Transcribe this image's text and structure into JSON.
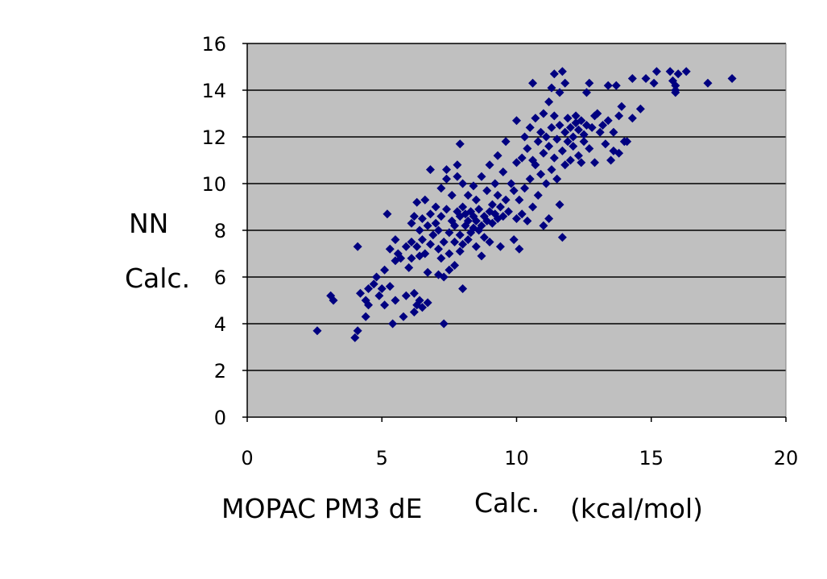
{
  "chart_data": {
    "type": "scatter",
    "title": "",
    "xlabel_parts": [
      "MOPAC PM3 dE",
      "Calc.",
      "(kcal/mol)"
    ],
    "ylabel_parts": [
      "NN",
      "Calc."
    ],
    "xlim": [
      0,
      20
    ],
    "ylim": [
      0,
      16
    ],
    "xticks": [
      "0",
      "5",
      "10",
      "15",
      "20"
    ],
    "yticks": [
      "0",
      "2",
      "4",
      "6",
      "8",
      "10",
      "12",
      "14",
      "16"
    ],
    "grid": "horizontal",
    "legend": "none",
    "colors": {
      "plot_background": "#c0c0c0",
      "marker": "#000080",
      "grid": "#000000"
    },
    "marker": "diamond",
    "points": [
      [
        2.6,
        3.7
      ],
      [
        3.1,
        5.2
      ],
      [
        3.2,
        5.0
      ],
      [
        4.0,
        3.4
      ],
      [
        4.1,
        3.7
      ],
      [
        4.1,
        7.3
      ],
      [
        4.2,
        5.3
      ],
      [
        4.4,
        4.3
      ],
      [
        4.4,
        5.0
      ],
      [
        4.5,
        4.8
      ],
      [
        4.5,
        5.5
      ],
      [
        4.7,
        5.7
      ],
      [
        4.8,
        6.0
      ],
      [
        4.9,
        5.2
      ],
      [
        5.0,
        5.5
      ],
      [
        5.1,
        4.8
      ],
      [
        5.1,
        6.3
      ],
      [
        5.2,
        8.7
      ],
      [
        5.3,
        5.6
      ],
      [
        5.3,
        7.2
      ],
      [
        5.4,
        4.0
      ],
      [
        5.5,
        5.0
      ],
      [
        5.5,
        6.7
      ],
      [
        5.5,
        7.6
      ],
      [
        5.6,
        7.0
      ],
      [
        5.7,
        6.8
      ],
      [
        5.8,
        4.3
      ],
      [
        5.9,
        5.2
      ],
      [
        5.9,
        7.3
      ],
      [
        6.0,
        6.4
      ],
      [
        6.1,
        6.8
      ],
      [
        6.1,
        7.5
      ],
      [
        6.1,
        8.3
      ],
      [
        6.2,
        4.5
      ],
      [
        6.2,
        5.3
      ],
      [
        6.2,
        8.6
      ],
      [
        6.3,
        4.8
      ],
      [
        6.3,
        7.3
      ],
      [
        6.3,
        9.2
      ],
      [
        6.4,
        5.0
      ],
      [
        6.4,
        6.9
      ],
      [
        6.4,
        8.0
      ],
      [
        6.5,
        4.7
      ],
      [
        6.5,
        7.6
      ],
      [
        6.5,
        8.5
      ],
      [
        6.6,
        7.0
      ],
      [
        6.6,
        9.3
      ],
      [
        6.7,
        4.9
      ],
      [
        6.7,
        6.2
      ],
      [
        6.7,
        8.2
      ],
      [
        6.8,
        7.4
      ],
      [
        6.8,
        8.7
      ],
      [
        6.8,
        10.6
      ],
      [
        6.9,
        7.8
      ],
      [
        7.0,
        8.3
      ],
      [
        7.0,
        9.0
      ],
      [
        7.1,
        6.1
      ],
      [
        7.1,
        7.2
      ],
      [
        7.1,
        8.0
      ],
      [
        7.2,
        6.8
      ],
      [
        7.2,
        8.6
      ],
      [
        7.2,
        9.8
      ],
      [
        7.3,
        4.0
      ],
      [
        7.3,
        6.0
      ],
      [
        7.3,
        7.5
      ],
      [
        7.4,
        8.9
      ],
      [
        7.4,
        10.2
      ],
      [
        7.4,
        10.6
      ],
      [
        7.5,
        6.3
      ],
      [
        7.5,
        7.0
      ],
      [
        7.5,
        7.9
      ],
      [
        7.6,
        8.4
      ],
      [
        7.6,
        9.5
      ],
      [
        7.7,
        6.5
      ],
      [
        7.7,
        7.5
      ],
      [
        7.7,
        8.2
      ],
      [
        7.8,
        8.8
      ],
      [
        7.8,
        10.3
      ],
      [
        7.8,
        10.8
      ],
      [
        7.9,
        7.1
      ],
      [
        7.9,
        7.8
      ],
      [
        7.9,
        8.6
      ],
      [
        7.9,
        11.7
      ],
      [
        8.0,
        5.5
      ],
      [
        8.0,
        7.4
      ],
      [
        8.0,
        9.0
      ],
      [
        8.0,
        10.0
      ],
      [
        8.1,
        8.2
      ],
      [
        8.1,
        8.7
      ],
      [
        8.2,
        7.6
      ],
      [
        8.2,
        8.4
      ],
      [
        8.2,
        9.5
      ],
      [
        8.3,
        7.9
      ],
      [
        8.3,
        8.8
      ],
      [
        8.4,
        8.1
      ],
      [
        8.4,
        8.6
      ],
      [
        8.4,
        9.9
      ],
      [
        8.5,
        7.3
      ],
      [
        8.5,
        8.4
      ],
      [
        8.5,
        9.3
      ],
      [
        8.6,
        8.0
      ],
      [
        8.6,
        8.9
      ],
      [
        8.7,
        6.9
      ],
      [
        8.7,
        8.2
      ],
      [
        8.7,
        10.3
      ],
      [
        8.8,
        7.7
      ],
      [
        8.8,
        8.6
      ],
      [
        8.9,
        8.4
      ],
      [
        8.9,
        9.7
      ],
      [
        9.0,
        7.5
      ],
      [
        9.0,
        8.8
      ],
      [
        9.0,
        10.8
      ],
      [
        9.1,
        8.3
      ],
      [
        9.1,
        9.1
      ],
      [
        9.2,
        8.7
      ],
      [
        9.2,
        10.0
      ],
      [
        9.3,
        8.5
      ],
      [
        9.3,
        9.5
      ],
      [
        9.3,
        11.2
      ],
      [
        9.4,
        7.3
      ],
      [
        9.4,
        9.0
      ],
      [
        9.5,
        8.6
      ],
      [
        9.5,
        10.5
      ],
      [
        9.6,
        9.3
      ],
      [
        9.6,
        11.8
      ],
      [
        9.7,
        8.8
      ],
      [
        9.8,
        10.0
      ],
      [
        9.9,
        7.6
      ],
      [
        9.9,
        9.7
      ],
      [
        10.0,
        8.5
      ],
      [
        10.0,
        10.9
      ],
      [
        10.0,
        12.7
      ],
      [
        10.1,
        7.2
      ],
      [
        10.1,
        9.3
      ],
      [
        10.2,
        8.7
      ],
      [
        10.2,
        11.1
      ],
      [
        10.3,
        9.8
      ],
      [
        10.3,
        12.0
      ],
      [
        10.4,
        8.4
      ],
      [
        10.4,
        11.5
      ],
      [
        10.5,
        10.2
      ],
      [
        10.5,
        12.4
      ],
      [
        10.6,
        9.0
      ],
      [
        10.6,
        11.0
      ],
      [
        10.6,
        14.3
      ],
      [
        10.7,
        10.8
      ],
      [
        10.7,
        12.8
      ],
      [
        10.8,
        9.5
      ],
      [
        10.8,
        11.8
      ],
      [
        10.9,
        10.4
      ],
      [
        10.9,
        12.2
      ],
      [
        11.0,
        8.2
      ],
      [
        11.0,
        11.3
      ],
      [
        11.0,
        13.0
      ],
      [
        11.1,
        10.0
      ],
      [
        11.1,
        12.0
      ],
      [
        11.2,
        8.5
      ],
      [
        11.2,
        11.6
      ],
      [
        11.2,
        13.5
      ],
      [
        11.3,
        10.6
      ],
      [
        11.3,
        12.4
      ],
      [
        11.3,
        14.1
      ],
      [
        11.4,
        11.1
      ],
      [
        11.4,
        12.9
      ],
      [
        11.4,
        14.7
      ],
      [
        11.5,
        10.2
      ],
      [
        11.5,
        11.9
      ],
      [
        11.6,
        9.1
      ],
      [
        11.6,
        12.5
      ],
      [
        11.6,
        13.9
      ],
      [
        11.7,
        7.7
      ],
      [
        11.7,
        11.4
      ],
      [
        11.7,
        14.8
      ],
      [
        11.8,
        10.8
      ],
      [
        11.8,
        12.2
      ],
      [
        11.8,
        14.3
      ],
      [
        11.9,
        11.8
      ],
      [
        11.9,
        12.8
      ],
      [
        12.0,
        11.0
      ],
      [
        12.0,
        12.4
      ],
      [
        12.1,
        11.6
      ],
      [
        12.1,
        12.0
      ],
      [
        12.2,
        12.6
      ],
      [
        12.2,
        12.9
      ],
      [
        12.3,
        11.2
      ],
      [
        12.3,
        12.3
      ],
      [
        12.4,
        10.9
      ],
      [
        12.4,
        12.7
      ],
      [
        12.5,
        11.8
      ],
      [
        12.5,
        12.1
      ],
      [
        12.6,
        12.5
      ],
      [
        12.6,
        13.9
      ],
      [
        12.7,
        11.5
      ],
      [
        12.7,
        14.3
      ],
      [
        12.8,
        12.4
      ],
      [
        12.9,
        10.9
      ],
      [
        12.9,
        12.9
      ],
      [
        13.0,
        13.0
      ],
      [
        13.1,
        12.2
      ],
      [
        13.2,
        12.5
      ],
      [
        13.3,
        11.7
      ],
      [
        13.4,
        12.7
      ],
      [
        13.4,
        14.2
      ],
      [
        13.5,
        11.0
      ],
      [
        13.6,
        11.4
      ],
      [
        13.6,
        12.2
      ],
      [
        13.7,
        14.2
      ],
      [
        13.8,
        11.3
      ],
      [
        13.8,
        12.9
      ],
      [
        13.9,
        13.3
      ],
      [
        14.0,
        11.8
      ],
      [
        14.1,
        11.8
      ],
      [
        14.3,
        12.8
      ],
      [
        14.3,
        14.5
      ],
      [
        14.6,
        13.2
      ],
      [
        14.8,
        14.5
      ],
      [
        15.1,
        14.3
      ],
      [
        15.2,
        14.8
      ],
      [
        15.7,
        14.8
      ],
      [
        15.8,
        14.4
      ],
      [
        15.9,
        14.2
      ],
      [
        15.9,
        14.0
      ],
      [
        15.9,
        13.9
      ],
      [
        16.0,
        14.7
      ],
      [
        16.3,
        14.8
      ],
      [
        17.1,
        14.3
      ],
      [
        18.0,
        14.5
      ]
    ]
  }
}
